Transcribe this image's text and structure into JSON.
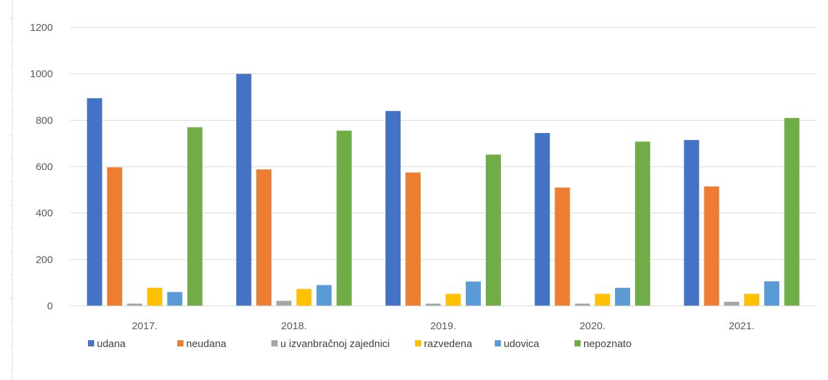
{
  "chart_data": {
    "type": "bar",
    "categories": [
      "2017.",
      "2018.",
      "2019.",
      "2020.",
      "2021."
    ],
    "series": [
      {
        "name": "udana",
        "color": "#4472c4",
        "values": [
          895,
          1000,
          840,
          745,
          715
        ]
      },
      {
        "name": "neudana",
        "color": "#ed7d31",
        "values": [
          597,
          588,
          575,
          510,
          515
        ]
      },
      {
        "name": "u izvanbračnoj zajednici",
        "color": "#a5a5a5",
        "values": [
          10,
          22,
          10,
          10,
          18
        ]
      },
      {
        "name": "razvedena",
        "color": "#ffc000",
        "values": [
          78,
          73,
          52,
          52,
          52
        ]
      },
      {
        "name": "udovica",
        "color": "#5b9bd5",
        "values": [
          60,
          90,
          105,
          78,
          106
        ]
      },
      {
        "name": "nepoznato",
        "color": "#70ad47",
        "values": [
          770,
          755,
          652,
          708,
          810
        ]
      }
    ],
    "ylim": [
      0,
      1200
    ],
    "yticks": [
      0,
      200,
      400,
      600,
      800,
      1000,
      1200
    ],
    "grid": true,
    "legend": "bottom"
  }
}
